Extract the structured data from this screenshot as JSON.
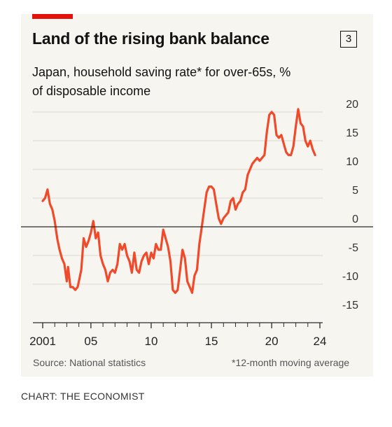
{
  "header": {
    "title": "Land of the rising bank balance",
    "chart_number": "3",
    "subtitle": "Japan, household saving rate* for over-65s, % of disposable income"
  },
  "footer": {
    "source": "Source: National statistics",
    "note": "*12-month moving average",
    "credit": "CHART: THE ECONOMIST"
  },
  "colors": {
    "accent": "#e3120b",
    "line": "#f04a2a",
    "background": "#f6f5f0",
    "grid": "#d9d6cc"
  },
  "chart_data": {
    "type": "line",
    "title": "Land of the rising bank balance",
    "subtitle": "Japan, household saving rate* for over-65s, % of disposable income",
    "ylim": [
      -15,
      20
    ],
    "yticks": [
      20,
      15,
      10,
      5,
      0,
      -5,
      -10,
      -15
    ],
    "ytick_labels": [
      "20",
      "15",
      "10",
      "5",
      "0",
      "-5",
      "-10",
      "-15"
    ],
    "xlim": [
      2001,
      2025
    ],
    "xticks": [
      2001,
      2005,
      2010,
      2015,
      2020,
      2024
    ],
    "xtick_labels": [
      "2001",
      "05",
      "10",
      "15",
      "20",
      "24"
    ],
    "grid": "horizontal",
    "series": [
      {
        "values": [
          [
            2001.0,
            4.5
          ],
          [
            2001.2,
            5.0
          ],
          [
            2001.4,
            6.5
          ],
          [
            2001.6,
            4.0
          ],
          [
            2001.8,
            3.0
          ],
          [
            2002.0,
            1.0
          ],
          [
            2002.2,
            -2.0
          ],
          [
            2002.4,
            -4.0
          ],
          [
            2002.6,
            -5.5
          ],
          [
            2002.8,
            -6.5
          ],
          [
            2003.0,
            -9.5
          ],
          [
            2003.1,
            -7.0
          ],
          [
            2003.3,
            -10.5
          ],
          [
            2003.5,
            -10.5
          ],
          [
            2003.7,
            -11.0
          ],
          [
            2003.9,
            -10.5
          ],
          [
            2004.0,
            -9.5
          ],
          [
            2004.2,
            -7.5
          ],
          [
            2004.4,
            -2.0
          ],
          [
            2004.6,
            -3.5
          ],
          [
            2004.8,
            -2.5
          ],
          [
            2005.0,
            -1.0
          ],
          [
            2005.2,
            1.0
          ],
          [
            2005.4,
            -2.0
          ],
          [
            2005.6,
            -1.0
          ],
          [
            2005.8,
            -5.0
          ],
          [
            2006.0,
            -6.5
          ],
          [
            2006.2,
            -7.5
          ],
          [
            2006.4,
            -9.5
          ],
          [
            2006.6,
            -8.0
          ],
          [
            2006.8,
            -7.5
          ],
          [
            2007.0,
            -8.0
          ],
          [
            2007.2,
            -6.5
          ],
          [
            2007.4,
            -3.0
          ],
          [
            2007.6,
            -4.0
          ],
          [
            2007.8,
            -3.0
          ],
          [
            2008.0,
            -5.0
          ],
          [
            2008.2,
            -6.0
          ],
          [
            2008.4,
            -8.0
          ],
          [
            2008.6,
            -4.5
          ],
          [
            2008.8,
            -7.5
          ],
          [
            2009.0,
            -8.0
          ],
          [
            2009.2,
            -6.0
          ],
          [
            2009.4,
            -5.0
          ],
          [
            2009.6,
            -4.5
          ],
          [
            2009.8,
            -6.5
          ],
          [
            2010.0,
            -4.5
          ],
          [
            2010.2,
            -5.5
          ],
          [
            2010.4,
            -3.0
          ],
          [
            2010.6,
            -4.0
          ],
          [
            2010.8,
            -4.0
          ],
          [
            2011.0,
            -0.5
          ],
          [
            2011.2,
            -2.0
          ],
          [
            2011.4,
            -3.5
          ],
          [
            2011.6,
            -6.0
          ],
          [
            2011.8,
            -11.0
          ],
          [
            2012.0,
            -11.5
          ],
          [
            2012.2,
            -11.0
          ],
          [
            2012.4,
            -7.5
          ],
          [
            2012.6,
            -4.0
          ],
          [
            2012.8,
            -5.5
          ],
          [
            2013.0,
            -9.5
          ],
          [
            2013.2,
            -10.5
          ],
          [
            2013.4,
            -11.5
          ],
          [
            2013.6,
            -8.5
          ],
          [
            2013.8,
            -7.5
          ],
          [
            2014.0,
            -3.0
          ],
          [
            2014.2,
            0.0
          ],
          [
            2014.4,
            3.0
          ],
          [
            2014.6,
            6.0
          ],
          [
            2014.8,
            7.0
          ],
          [
            2015.0,
            7.0
          ],
          [
            2015.2,
            6.5
          ],
          [
            2015.4,
            4.0
          ],
          [
            2015.6,
            1.5
          ],
          [
            2015.8,
            0.5
          ],
          [
            2016.0,
            1.5
          ],
          [
            2016.2,
            2.0
          ],
          [
            2016.4,
            2.5
          ],
          [
            2016.6,
            4.5
          ],
          [
            2016.8,
            5.0
          ],
          [
            2017.0,
            3.0
          ],
          [
            2017.2,
            4.0
          ],
          [
            2017.4,
            4.5
          ],
          [
            2017.6,
            6.0
          ],
          [
            2017.8,
            6.5
          ],
          [
            2018.0,
            9.0
          ],
          [
            2018.2,
            10.0
          ],
          [
            2018.4,
            11.0
          ],
          [
            2018.6,
            11.5
          ],
          [
            2018.8,
            12.0
          ],
          [
            2019.0,
            11.5
          ],
          [
            2019.2,
            12.0
          ],
          [
            2019.4,
            12.5
          ],
          [
            2019.6,
            16.5
          ],
          [
            2019.8,
            19.5
          ],
          [
            2020.0,
            20.0
          ],
          [
            2020.2,
            19.5
          ],
          [
            2020.4,
            16.0
          ],
          [
            2020.6,
            15.5
          ],
          [
            2020.8,
            16.0
          ],
          [
            2021.0,
            14.5
          ],
          [
            2021.2,
            13.0
          ],
          [
            2021.4,
            12.5
          ],
          [
            2021.6,
            12.5
          ],
          [
            2021.8,
            14.0
          ],
          [
            2022.0,
            17.5
          ],
          [
            2022.2,
            20.5
          ],
          [
            2022.4,
            18.0
          ],
          [
            2022.6,
            17.5
          ],
          [
            2022.8,
            15.0
          ],
          [
            2023.0,
            14.0
          ],
          [
            2023.2,
            15.0
          ],
          [
            2023.4,
            13.5
          ],
          [
            2023.6,
            12.5
          ]
        ]
      }
    ]
  }
}
